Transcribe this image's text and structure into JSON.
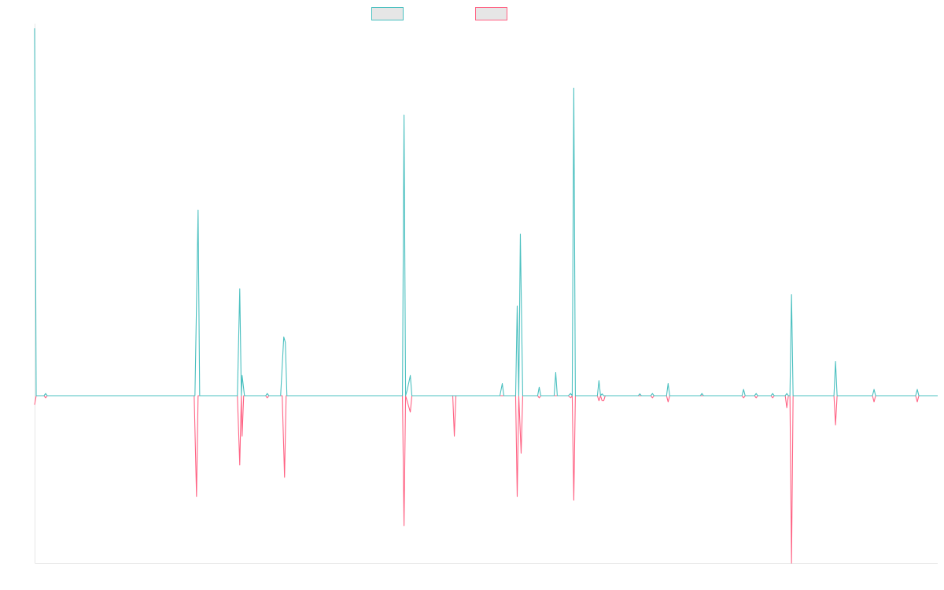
{
  "chart_data": {
    "type": "line",
    "title": "",
    "xlabel": "",
    "ylabel": "",
    "legend": {
      "position": "top-center"
    },
    "grid": false,
    "ylim": [
      -0.46,
      1.0
    ],
    "xlim": [
      0,
      1149
    ],
    "series": [
      {
        "color": "#4bc0c0",
        "points": [
          [
            0,
            1.0
          ],
          [
            2,
            0.0
          ],
          [
            12,
            0.0
          ],
          [
            14,
            0.006
          ],
          [
            16,
            0.0
          ],
          [
            202,
            0.0
          ],
          [
            204,
            0.0
          ],
          [
            208,
            0.505
          ],
          [
            210,
            0.0
          ],
          [
            258,
            0.0
          ],
          [
            261,
            0.291
          ],
          [
            263,
            0.0
          ],
          [
            264,
            0.055
          ],
          [
            267,
            0.0
          ],
          [
            294,
            0.0
          ],
          [
            296,
            0.006
          ],
          [
            298,
            0.0
          ],
          [
            313,
            0.0
          ],
          [
            317,
            0.16
          ],
          [
            319,
            0.145
          ],
          [
            321,
            0.0
          ],
          [
            468,
            0.0
          ],
          [
            470,
            0.764
          ],
          [
            472,
            0.0
          ],
          [
            474,
            0.015
          ],
          [
            478,
            0.055
          ],
          [
            480,
            0.0
          ],
          [
            592,
            0.0
          ],
          [
            595,
            0.033
          ],
          [
            597,
            0.0
          ],
          [
            612,
            0.0
          ],
          [
            614,
            0.244
          ],
          [
            616,
            0.0
          ],
          [
            618,
            0.44
          ],
          [
            621,
            0.0
          ],
          [
            640,
            0.0
          ],
          [
            642,
            0.023
          ],
          [
            644,
            0.0
          ],
          [
            661,
            0.0
          ],
          [
            663,
            0.063
          ],
          [
            665,
            0.0
          ],
          [
            679,
            0.0
          ],
          [
            682,
            0.006
          ],
          [
            684,
            0.0
          ],
          [
            686,
            0.837
          ],
          [
            688,
            0.0
          ],
          [
            716,
            0.0
          ],
          [
            718,
            0.041
          ],
          [
            720,
            0.0
          ],
          [
            722,
            0.005
          ],
          [
            724,
            0.0
          ],
          [
            768,
            0.0
          ],
          [
            770,
            0.005
          ],
          [
            772,
            0.0
          ],
          [
            784,
            0.0
          ],
          [
            786,
            0.006
          ],
          [
            788,
            0.0
          ],
          [
            804,
            0.0
          ],
          [
            806,
            0.033
          ],
          [
            808,
            0.0
          ],
          [
            847,
            0.0
          ],
          [
            849,
            0.006
          ],
          [
            851,
            0.0
          ],
          [
            900,
            0.0
          ],
          [
            902,
            0.017
          ],
          [
            904,
            0.0
          ],
          [
            916,
            0.0
          ],
          [
            918,
            0.006
          ],
          [
            920,
            0.0
          ],
          [
            937,
            0.0
          ],
          [
            939,
            0.006
          ],
          [
            941,
            0.0
          ],
          [
            955,
            0.0
          ],
          [
            957,
            0.006
          ],
          [
            959,
            0.0
          ],
          [
            961,
            0.0
          ],
          [
            963,
            0.275
          ],
          [
            965,
            0.0
          ],
          [
            1017,
            0.0
          ],
          [
            1019,
            0.093
          ],
          [
            1021,
            0.0
          ],
          [
            1066,
            0.0
          ],
          [
            1068,
            0.017
          ],
          [
            1070,
            0.0
          ],
          [
            1121,
            0.0
          ],
          [
            1123,
            0.017
          ],
          [
            1125,
            0.0
          ],
          [
            1149,
            0.0
          ]
        ]
      },
      {
        "color": "#ff6384",
        "points": [
          [
            0,
            -0.025
          ],
          [
            2,
            0.0
          ],
          [
            12,
            0.0
          ],
          [
            14,
            -0.006
          ],
          [
            16,
            0.0
          ],
          [
            203,
            0.0
          ],
          [
            206,
            -0.277
          ],
          [
            208,
            0.0
          ],
          [
            258,
            0.0
          ],
          [
            261,
            -0.19
          ],
          [
            263,
            0.0
          ],
          [
            264,
            -0.111
          ],
          [
            266,
            0.0
          ],
          [
            294,
            0.0
          ],
          [
            296,
            -0.006
          ],
          [
            298,
            0.0
          ],
          [
            315,
            0.0
          ],
          [
            318,
            -0.224
          ],
          [
            320,
            0.0
          ],
          [
            468,
            0.0
          ],
          [
            470,
            -0.357
          ],
          [
            472,
            0.0
          ],
          [
            478,
            -0.045
          ],
          [
            480,
            0.0
          ],
          [
            532,
            0.0
          ],
          [
            534,
            -0.111
          ],
          [
            536,
            0.0
          ],
          [
            612,
            0.0
          ],
          [
            614,
            -0.277
          ],
          [
            616,
            0.0
          ],
          [
            619,
            -0.158
          ],
          [
            621,
            0.0
          ],
          [
            640,
            0.0
          ],
          [
            642,
            -0.006
          ],
          [
            644,
            0.0
          ],
          [
            679,
            0.0
          ],
          [
            682,
            -0.006
          ],
          [
            684,
            0.0
          ],
          [
            686,
            -0.287
          ],
          [
            688,
            0.0
          ],
          [
            716,
            0.0
          ],
          [
            718,
            -0.014
          ],
          [
            720,
            0.0
          ],
          [
            722,
            -0.014
          ],
          [
            724,
            -0.014
          ],
          [
            726,
            0.0
          ],
          [
            784,
            0.0
          ],
          [
            786,
            -0.006
          ],
          [
            788,
            0.0
          ],
          [
            804,
            0.0
          ],
          [
            806,
            -0.017
          ],
          [
            808,
            0.0
          ],
          [
            900,
            0.0
          ],
          [
            902,
            -0.006
          ],
          [
            904,
            0.0
          ],
          [
            916,
            0.0
          ],
          [
            918,
            -0.006
          ],
          [
            920,
            0.0
          ],
          [
            937,
            0.0
          ],
          [
            939,
            -0.006
          ],
          [
            941,
            0.0
          ],
          [
            955,
            0.0
          ],
          [
            957,
            -0.033
          ],
          [
            959,
            0.0
          ],
          [
            961,
            0.0
          ],
          [
            963,
            -0.46
          ],
          [
            965,
            0.0
          ],
          [
            1017,
            0.0
          ],
          [
            1019,
            -0.08
          ],
          [
            1021,
            0.0
          ],
          [
            1066,
            0.0
          ],
          [
            1068,
            -0.017
          ],
          [
            1070,
            0.0
          ],
          [
            1121,
            0.0
          ],
          [
            1123,
            -0.017
          ],
          [
            1125,
            0.0
          ],
          [
            1149,
            0.0
          ]
        ]
      }
    ]
  }
}
